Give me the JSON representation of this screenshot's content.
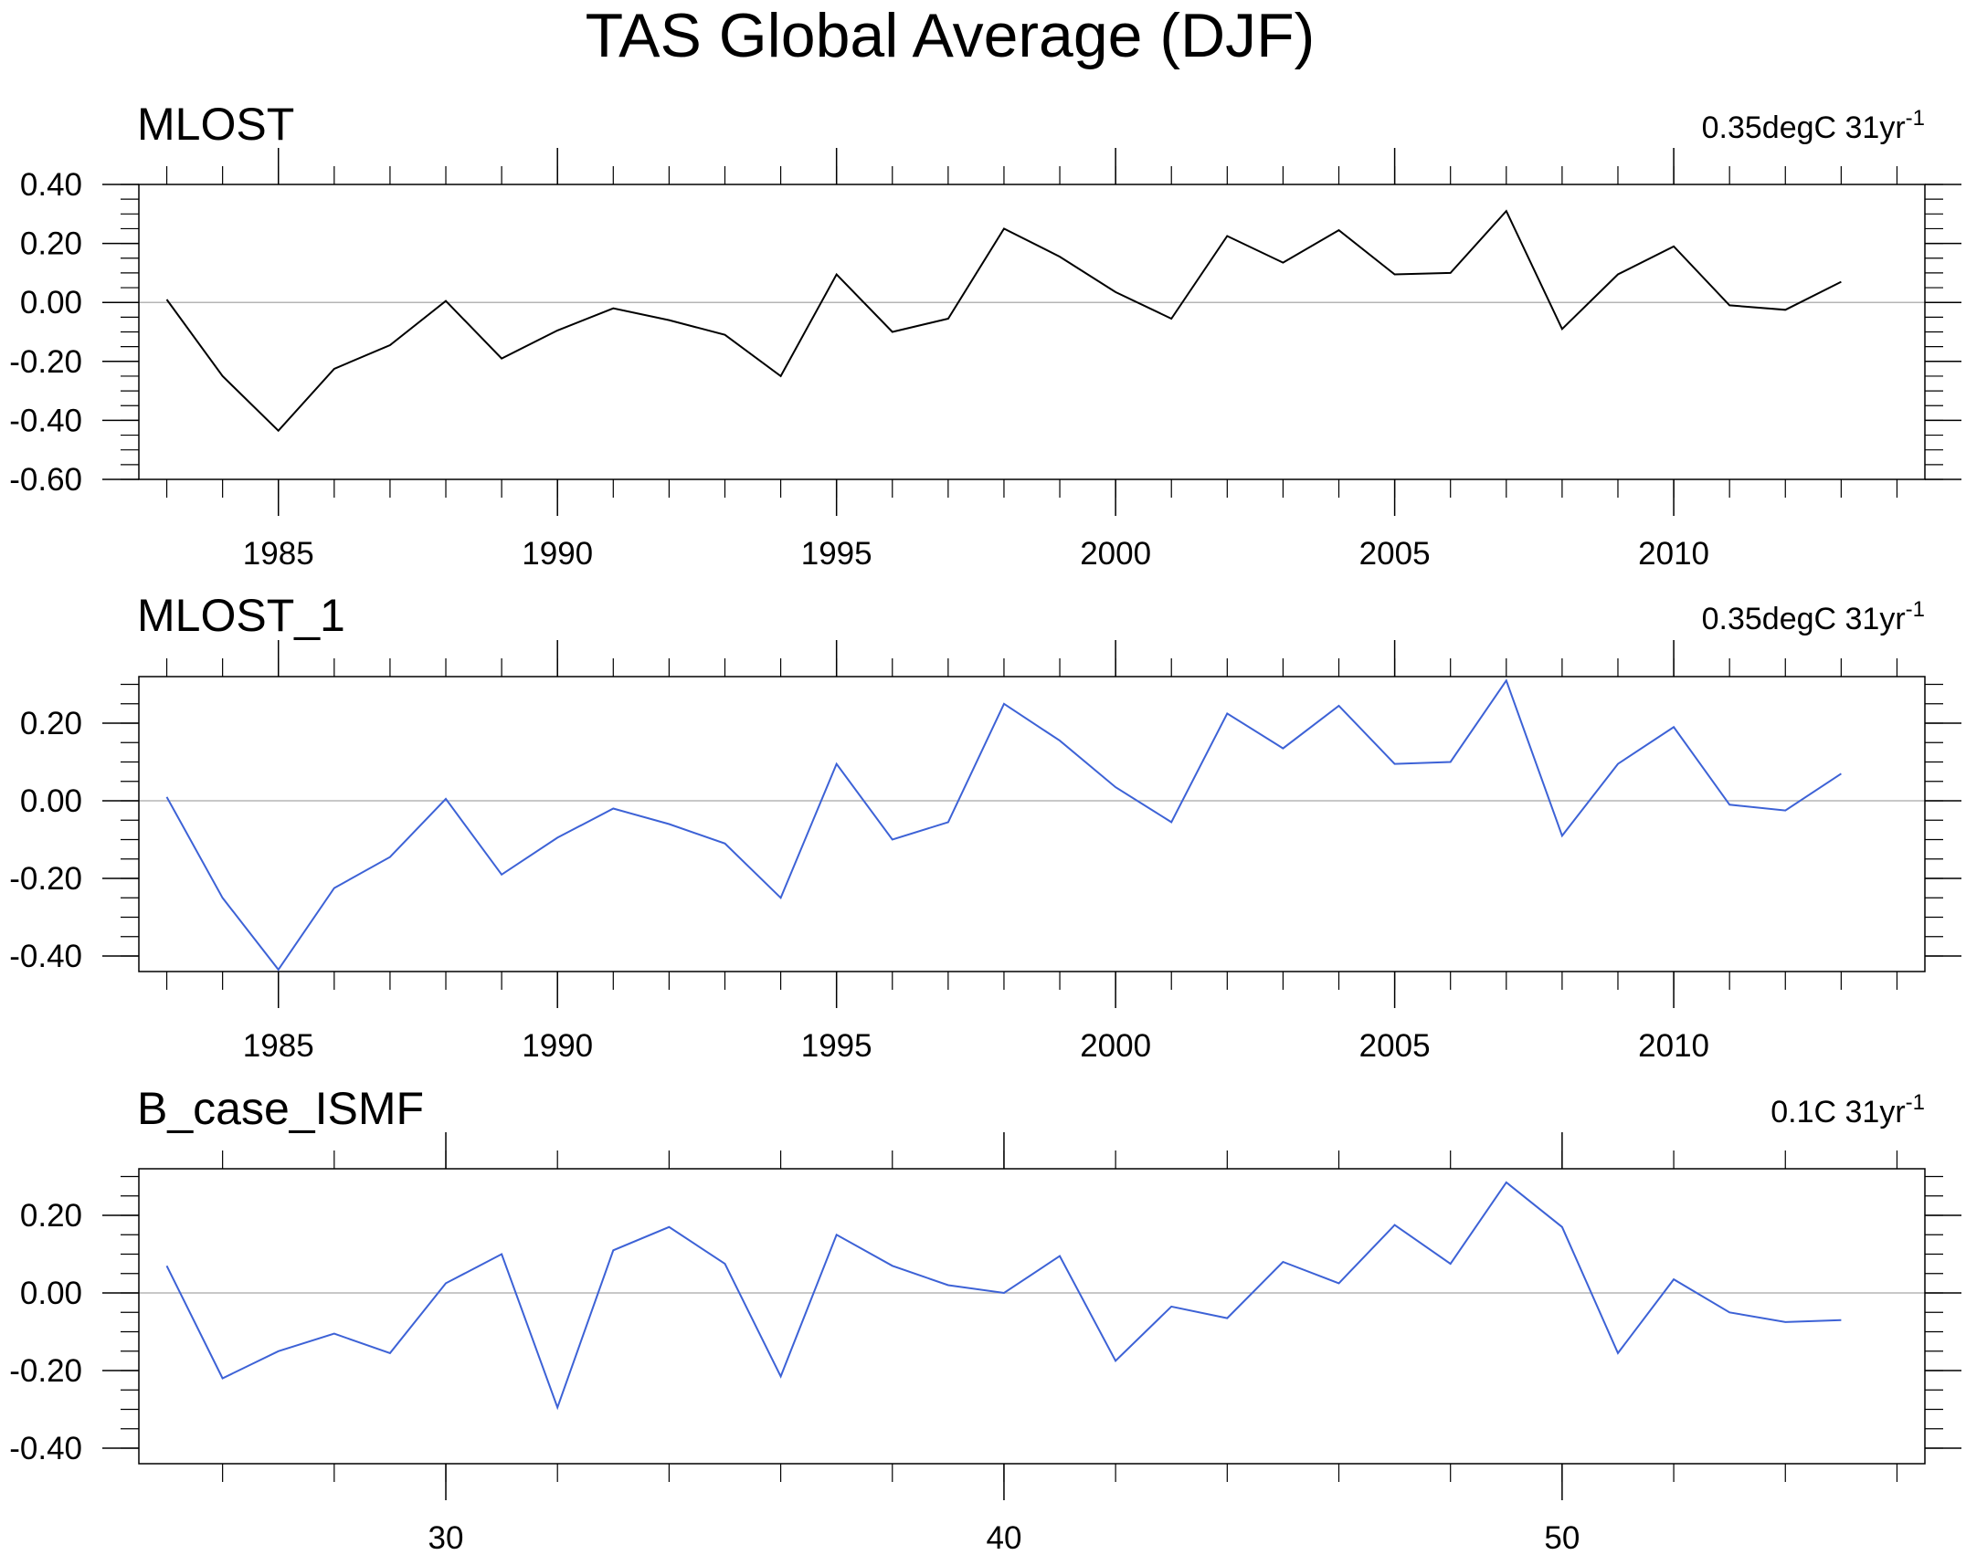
{
  "figure": {
    "title": "TAS Global Average (DJF)"
  },
  "chart_data": [
    {
      "type": "line",
      "title": "MLOST",
      "trend_value": "0.35degC 31yr",
      "trend_exponent": "-1",
      "xlabel": "",
      "ylabel": "",
      "line_color": "#000000",
      "xlim": [
        1982.5,
        2014.5
      ],
      "ylim": [
        -0.6,
        0.4
      ],
      "major_yticks": [
        -0.6,
        -0.4,
        -0.2,
        0.0,
        0.2,
        0.4
      ],
      "ytick_labels": [
        "-0.60",
        "-0.40",
        "-0.20",
        "0.00",
        "0.20",
        "0.40"
      ],
      "minor_ystep": 0.05,
      "major_xticks": [
        1985,
        1990,
        1995,
        2000,
        2005,
        2010
      ],
      "xtick_labels": [
        "1985",
        "1990",
        "1995",
        "2000",
        "2005",
        "2010"
      ],
      "minor_xstep": 1,
      "zero_line": true,
      "x": [
        1983,
        1984,
        1985,
        1986,
        1987,
        1988,
        1989,
        1990,
        1991,
        1992,
        1993,
        1994,
        1995,
        1996,
        1997,
        1998,
        1999,
        2000,
        2001,
        2002,
        2003,
        2004,
        2005,
        2006,
        2007,
        2008,
        2009,
        2010,
        2011,
        2012,
        2013
      ],
      "values": [
        0.01,
        -0.25,
        -0.435,
        -0.225,
        -0.145,
        0.005,
        -0.19,
        -0.095,
        -0.02,
        -0.06,
        -0.11,
        -0.25,
        0.095,
        -0.1,
        -0.055,
        0.25,
        0.155,
        0.035,
        -0.055,
        0.225,
        0.135,
        0.245,
        0.095,
        0.1,
        0.31,
        -0.09,
        0.095,
        0.19,
        -0.01,
        -0.025,
        0.07
      ]
    },
    {
      "type": "line",
      "title": "MLOST_1",
      "trend_value": "0.35degC 31yr",
      "trend_exponent": "-1",
      "xlabel": "",
      "ylabel": "",
      "line_color": "#3d62d6",
      "xlim": [
        1982.5,
        2014.5
      ],
      "ylim": [
        -0.44,
        0.32
      ],
      "major_yticks": [
        -0.4,
        -0.2,
        0.0,
        0.2
      ],
      "ytick_labels": [
        "-0.40",
        "-0.20",
        "0.00",
        "0.20"
      ],
      "minor_ystep": 0.05,
      "major_xticks": [
        1985,
        1990,
        1995,
        2000,
        2005,
        2010
      ],
      "xtick_labels": [
        "1985",
        "1990",
        "1995",
        "2000",
        "2005",
        "2010"
      ],
      "minor_xstep": 1,
      "zero_line": true,
      "x": [
        1983,
        1984,
        1985,
        1986,
        1987,
        1988,
        1989,
        1990,
        1991,
        1992,
        1993,
        1994,
        1995,
        1996,
        1997,
        1998,
        1999,
        2000,
        2001,
        2002,
        2003,
        2004,
        2005,
        2006,
        2007,
        2008,
        2009,
        2010,
        2011,
        2012,
        2013
      ],
      "values": [
        0.01,
        -0.25,
        -0.435,
        -0.225,
        -0.145,
        0.005,
        -0.19,
        -0.095,
        -0.02,
        -0.06,
        -0.11,
        -0.25,
        0.095,
        -0.1,
        -0.055,
        0.25,
        0.155,
        0.035,
        -0.055,
        0.225,
        0.135,
        0.245,
        0.095,
        0.1,
        0.31,
        -0.09,
        0.095,
        0.19,
        -0.01,
        -0.025,
        0.07
      ]
    },
    {
      "type": "line",
      "title": "B_case_ISMF",
      "trend_value": "0.1C 31yr",
      "trend_exponent": "-1",
      "xlabel": "",
      "ylabel": "",
      "line_color": "#3d62d6",
      "xlim": [
        24.5,
        56.5
      ],
      "ylim": [
        -0.44,
        0.32
      ],
      "major_yticks": [
        -0.4,
        -0.2,
        0.0,
        0.2
      ],
      "ytick_labels": [
        "-0.40",
        "-0.20",
        "0.00",
        "0.20"
      ],
      "minor_ystep": 0.05,
      "major_xticks": [
        30,
        40,
        50
      ],
      "xtick_labels": [
        "30",
        "40",
        "50"
      ],
      "minor_xstep": 2,
      "zero_line": true,
      "x": [
        25,
        26,
        27,
        28,
        29,
        30,
        31,
        32,
        33,
        34,
        35,
        36,
        37,
        38,
        39,
        40,
        41,
        42,
        43,
        44,
        45,
        46,
        47,
        48,
        49,
        50,
        51,
        52,
        53,
        54,
        55
      ],
      "values": [
        0.07,
        -0.22,
        -0.15,
        -0.105,
        -0.155,
        0.025,
        0.1,
        -0.295,
        0.11,
        0.17,
        0.075,
        -0.215,
        0.15,
        0.07,
        0.02,
        0.0,
        0.095,
        -0.175,
        -0.035,
        -0.065,
        0.08,
        0.025,
        0.175,
        0.075,
        0.285,
        0.17,
        -0.155,
        0.035,
        -0.05,
        -0.075,
        -0.07
      ]
    }
  ]
}
